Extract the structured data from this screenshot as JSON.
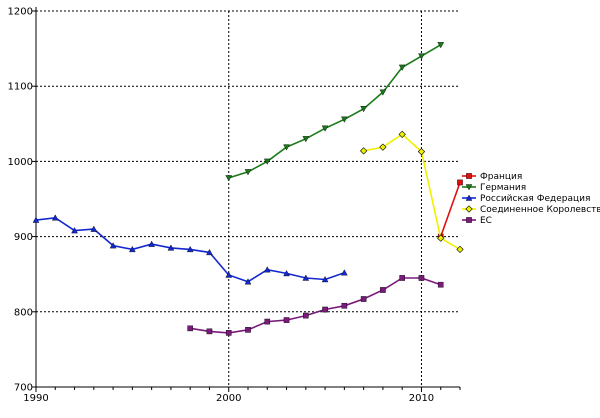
{
  "chart_data": {
    "type": "line",
    "title": "",
    "xlabel": "",
    "ylabel": "",
    "xlim": [
      1990,
      2012
    ],
    "ylim": [
      700,
      1200
    ],
    "x_ticks": [
      1990,
      2000,
      2010
    ],
    "y_ticks": [
      700,
      800,
      900,
      1000,
      1100,
      1200
    ],
    "x_tick_labels": [
      "1990",
      "2000",
      "2010"
    ],
    "y_tick_labels": [
      "700",
      "800",
      "900",
      "1000",
      "1100",
      "1200"
    ],
    "grid": "dashed, at ticks",
    "legend_position": "right",
    "series": [
      {
        "name": "Франция",
        "color": "#e01010",
        "marker": "square",
        "x": [
          2011,
          2012
        ],
        "y": [
          900,
          972
        ]
      },
      {
        "name": "Германия",
        "color": "#1a7a1a",
        "marker": "triangle-down",
        "x": [
          2000,
          2001,
          2002,
          2003,
          2004,
          2005,
          2006,
          2007,
          2008,
          2009,
          2010,
          2011
        ],
        "y": [
          978,
          986,
          1000,
          1019,
          1030,
          1044,
          1056,
          1070,
          1092,
          1125,
          1140,
          1155
        ]
      },
      {
        "name": "Российская Федерация",
        "color": "#1428d0",
        "marker": "triangle-up",
        "x": [
          1990,
          1991,
          1992,
          1993,
          1994,
          1995,
          1996,
          1997,
          1998,
          1999,
          2000,
          2001,
          2002,
          2003,
          2004,
          2005,
          2006
        ],
        "y": [
          922,
          925,
          908,
          910,
          888,
          883,
          890,
          885,
          883,
          879,
          849,
          840,
          856,
          851,
          845,
          843,
          852
        ]
      },
      {
        "name": "Соединенное Королевство",
        "color": "#f0f000",
        "marker": "diamond",
        "x": [
          2007,
          2008,
          2009,
          2010,
          2011,
          2012
        ],
        "y": [
          1014,
          1019,
          1036,
          1013,
          898,
          883
        ]
      },
      {
        "name": "ЕС",
        "color": "#7a1a7a",
        "marker": "square",
        "x": [
          1998,
          1999,
          2000,
          2001,
          2002,
          2003,
          2004,
          2005,
          2006,
          2007,
          2008,
          2009,
          2010,
          2011
        ],
        "y": [
          778,
          774,
          772,
          776,
          787,
          789,
          795,
          803,
          808,
          817,
          829,
          845,
          845,
          836
        ]
      }
    ]
  }
}
